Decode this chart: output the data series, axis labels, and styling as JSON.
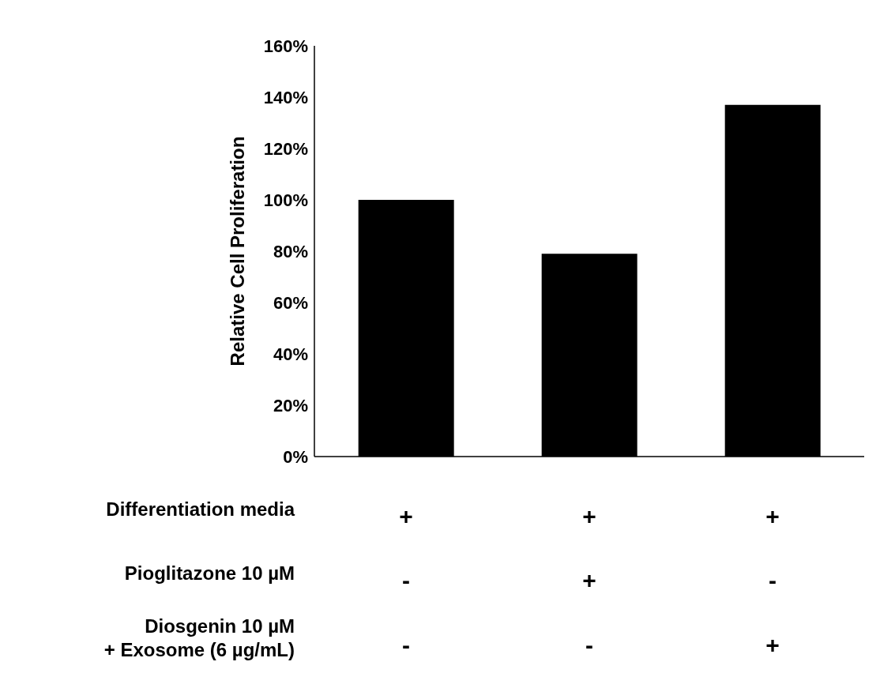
{
  "chart_data": {
    "type": "bar",
    "ylabel": "Relative Cell  Proliferation",
    "categories": [
      "+\n-\n-",
      "+\n+\n-",
      "+\n-\n+"
    ],
    "values": [
      100,
      79,
      137
    ],
    "color": "#000000",
    "ylim": [
      0,
      160
    ],
    "yticks": [
      {
        "value": 0,
        "label": "0%"
      },
      {
        "value": 20,
        "label": "20%"
      },
      {
        "value": 40,
        "label": "40%"
      },
      {
        "value": 60,
        "label": "60%"
      },
      {
        "value": 80,
        "label": "80%"
      },
      {
        "value": 100,
        "label": "100%"
      },
      {
        "value": 120,
        "label": "120%"
      },
      {
        "value": 140,
        "label": "140%"
      },
      {
        "value": 160,
        "label": "160%"
      }
    ],
    "annotations": [
      "Differentiation media",
      "Pioglitazone 10 µM",
      "Diosgenin 10 µM\n+ Exosome (6 µg/mL)"
    ]
  }
}
